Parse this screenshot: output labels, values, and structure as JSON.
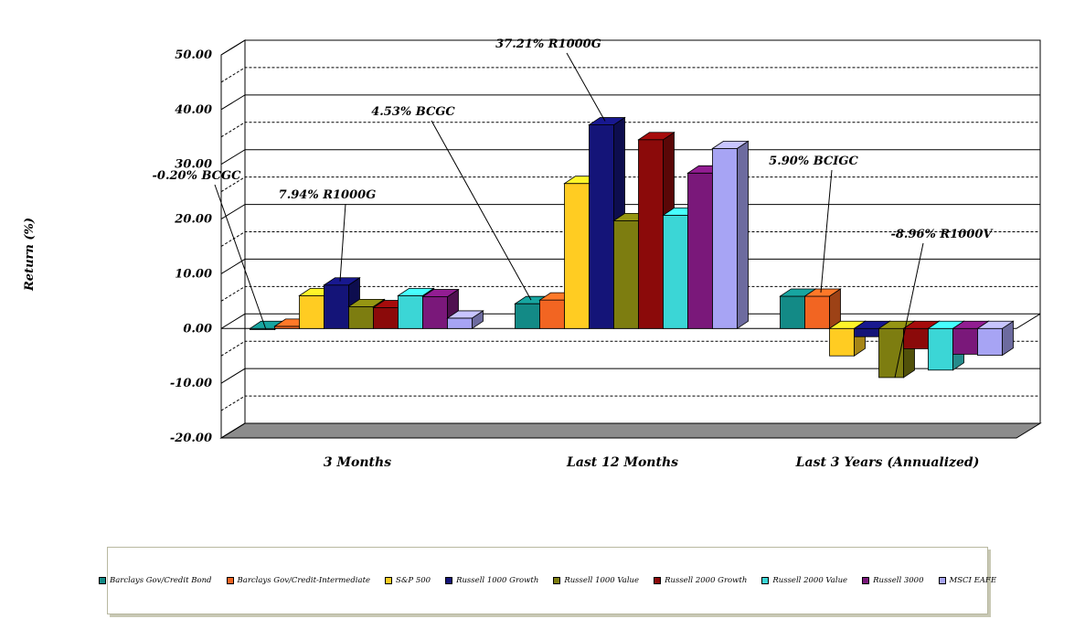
{
  "chart_data": {
    "type": "bar",
    "ylabel": "Return (%)",
    "ylim": [
      -20,
      50
    ],
    "yticks": [
      "50.00",
      "40.00",
      "30.00",
      "20.00",
      "10.00",
      "0.00",
      "-10.00",
      "-20.00"
    ],
    "categories": [
      "3 Months",
      "Last 12 Months",
      "Last 3 Years (Annualized)"
    ],
    "series": [
      {
        "name": "Barclays Gov/Credit Bond",
        "color": "#138a86",
        "values": [
          -0.2,
          4.53,
          5.9
        ]
      },
      {
        "name": "Barclays Gov/Credit-Intermediate",
        "color": "#f26522",
        "values": [
          0.4,
          5.2,
          5.9
        ]
      },
      {
        "name": "S&P 500",
        "color": "#ffcc22",
        "values": [
          6.0,
          26.5,
          -5.0
        ]
      },
      {
        "name": "Russell 1000 Growth",
        "color": "#141478",
        "values": [
          7.94,
          37.21,
          -1.5
        ]
      },
      {
        "name": "Russell 1000 Value",
        "color": "#7d7d10",
        "values": [
          4.0,
          19.7,
          -8.96
        ]
      },
      {
        "name": "Russell 2000 Growth",
        "color": "#8b0a0a",
        "values": [
          3.8,
          34.5,
          -3.7
        ]
      },
      {
        "name": "Russell 2000 Value",
        "color": "#3bd6d6",
        "values": [
          6.0,
          20.7,
          -7.6
        ]
      },
      {
        "name": "Russell 3000",
        "color": "#7a187a",
        "values": [
          5.8,
          28.4,
          -4.7
        ]
      },
      {
        "name": "MSCI EAFE",
        "color": "#a7a4f4",
        "values": [
          1.9,
          32.9,
          -4.9
        ]
      }
    ],
    "annotations": [
      {
        "text": "37.21% R1000G",
        "category": 1,
        "series": 3
      },
      {
        "text": "4.53% BCGC",
        "category": 1,
        "series": 0
      },
      {
        "text": "-0.20% BCGC",
        "category": 0,
        "series": 0
      },
      {
        "text": "7.94% R1000G",
        "category": 0,
        "series": 3
      },
      {
        "text": "5.90% BCIGC",
        "category": 2,
        "series": 1
      },
      {
        "text": "-8.96% R1000V",
        "category": 2,
        "series": 4
      }
    ],
    "grid": true,
    "legend": "bottom"
  }
}
